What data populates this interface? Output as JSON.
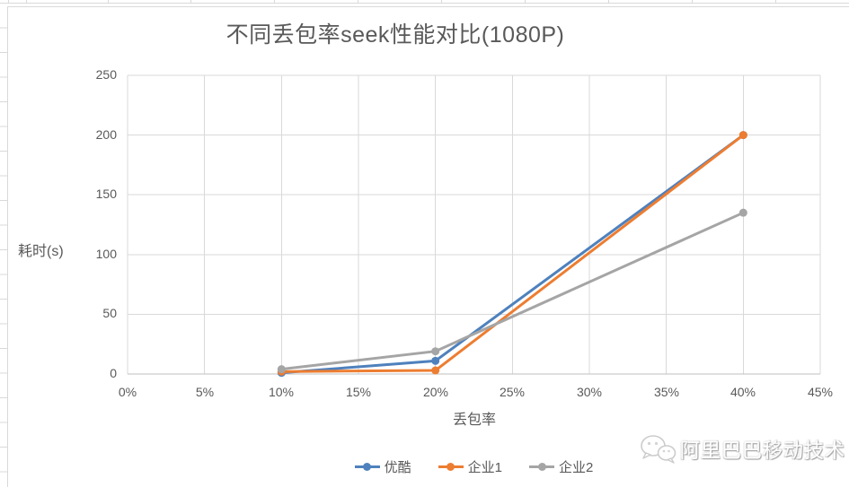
{
  "title": "不同丢包率seek性能对比(1080P)",
  "chart_data": {
    "type": "line",
    "title": "不同丢包率seek性能对比(1080P)",
    "xlabel": "丢包率",
    "ylabel": "耗时(s)",
    "xlim": [
      0,
      45
    ],
    "ylim": [
      0,
      250
    ],
    "grid": true,
    "legend_position": "bottom",
    "x_ticks": [
      "0%",
      "5%",
      "10%",
      "15%",
      "20%",
      "25%",
      "30%",
      "35%",
      "40%",
      "45%"
    ],
    "y_ticks": [
      0,
      50,
      100,
      150,
      200,
      250
    ],
    "x_unit": "percent",
    "x": [
      10,
      20,
      40
    ],
    "series": [
      {
        "name": "优酷",
        "color": "#4E81BD",
        "values": [
          1,
          11,
          200
        ]
      },
      {
        "name": "企业1",
        "color": "#ED7D31",
        "values": [
          2,
          3,
          200
        ]
      },
      {
        "name": "企业2",
        "color": "#A5A5A5",
        "values": [
          4,
          19,
          135
        ]
      }
    ]
  },
  "watermark": {
    "icon": "wechat-icon",
    "text": "阿里巴巴移动技术"
  },
  "colors": {
    "gridline": "#D9D9D9",
    "axis_line": "#BFBFBF",
    "text": "#595959",
    "chart_border": "#D9D9D9"
  }
}
